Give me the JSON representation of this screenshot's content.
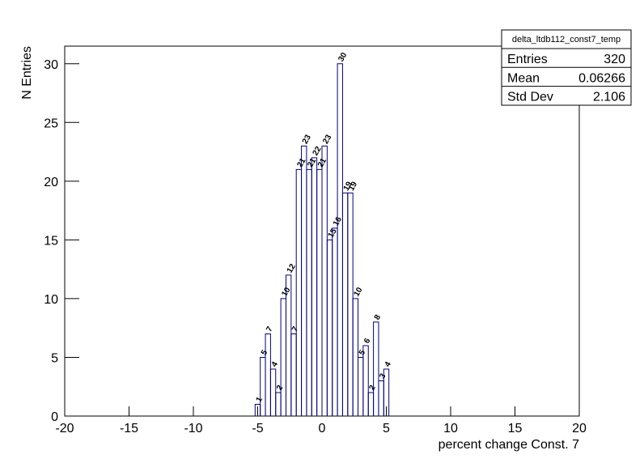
{
  "chart_data": {
    "type": "histogram",
    "title": "delta_ltdb112_const7_temp",
    "x_label": "percent change Const. 7",
    "y_label": "N Entries",
    "bins": [
      -5.2,
      -4.8,
      -4.4,
      -4,
      -3.6,
      -3.2,
      -2.8,
      -2.4,
      -2,
      -1.6,
      -1.2,
      -0.8,
      -0.4,
      0,
      0.4,
      0.8,
      1.2,
      1.6,
      2,
      2.4,
      2.8,
      3.2,
      3.6,
      4,
      4.4,
      4.8,
      5.2
    ],
    "values": [
      1,
      5,
      7,
      4,
      2,
      10,
      12,
      7,
      21,
      23,
      21,
      22,
      21,
      23,
      15,
      16,
      30,
      19,
      19,
      10,
      5,
      6,
      2,
      8,
      3,
      4
    ],
    "color": "#000080",
    "xlim": [
      -20,
      20
    ],
    "xticks": [
      -20,
      -15,
      -10,
      -5,
      0,
      5,
      10,
      15,
      20
    ],
    "ylim": [
      0,
      31.5
    ],
    "yticks": [
      0,
      5,
      10,
      15,
      20,
      25,
      30
    ],
    "stats": {
      "labels": [
        "Entries",
        "Mean",
        "Std Dev"
      ],
      "values": [
        320,
        0.06266,
        2.106
      ]
    }
  }
}
